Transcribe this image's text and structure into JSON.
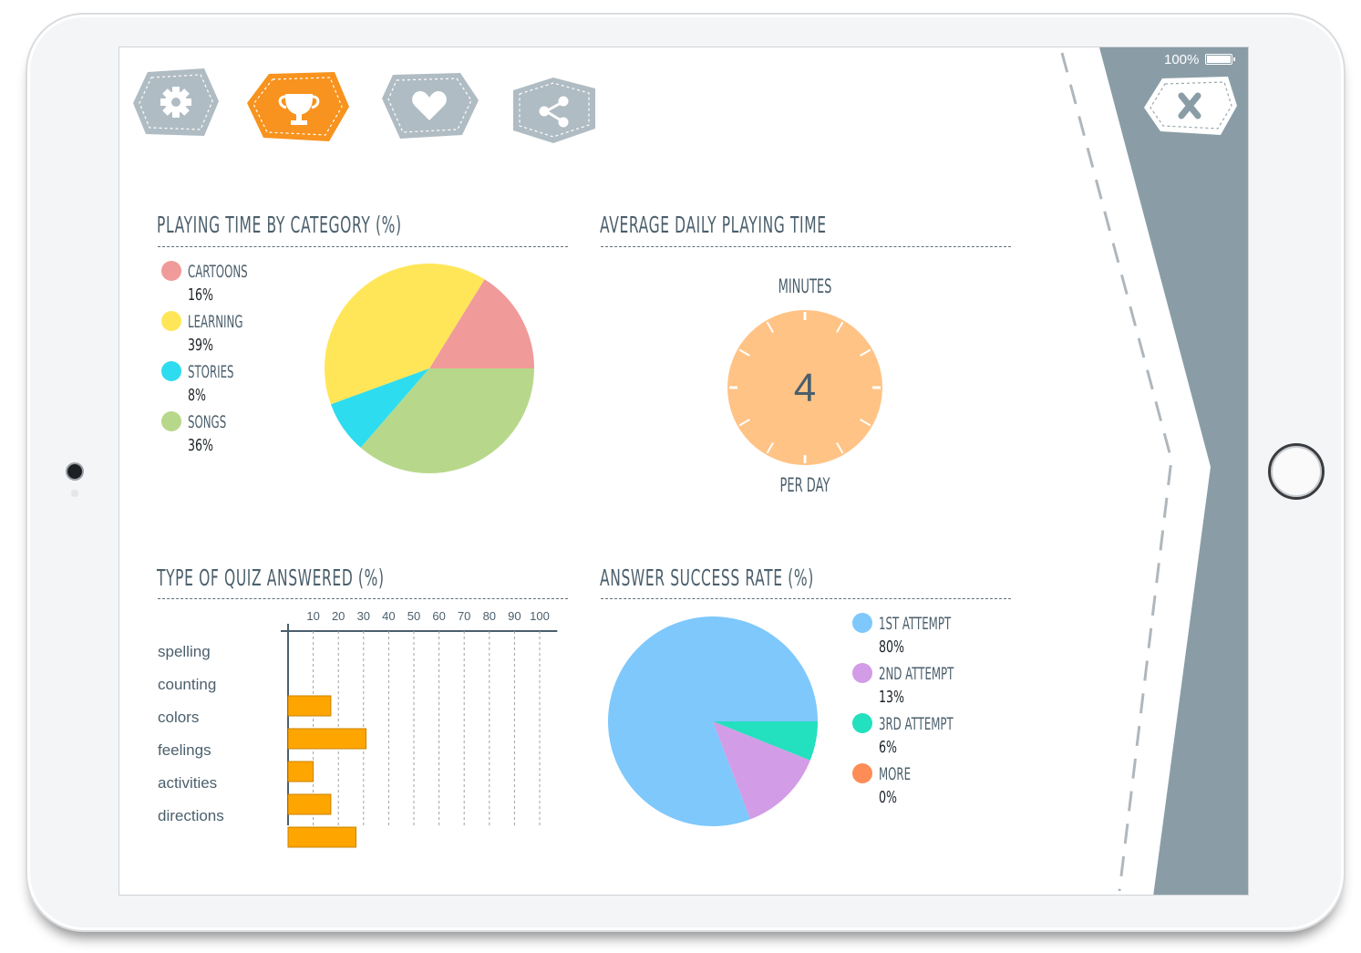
{
  "status": {
    "battery": "100%"
  },
  "toolbar": {
    "badges": [
      {
        "icon": "gear-icon",
        "color": "#b0bcc3",
        "active": false
      },
      {
        "icon": "trophy-icon",
        "color": "#f7931e",
        "active": true
      },
      {
        "icon": "heart-icon",
        "color": "#b0bcc3",
        "active": false
      },
      {
        "icon": "share-icon",
        "color": "#b0bcc3",
        "active": false
      }
    ],
    "close_icon": "close-icon"
  },
  "sections": {
    "category": {
      "title": "PLAYING TIME BY CATEGORY (%)",
      "legend": [
        {
          "label": "CARTOONS",
          "value": "16%",
          "color": "#f09a9a"
        },
        {
          "label": "LEARNING",
          "value": "39%",
          "color": "#ffe658"
        },
        {
          "label": "STORIES",
          "value": "8%",
          "color": "#2ddcef"
        },
        {
          "label": "SONGS",
          "value": "36%",
          "color": "#b7d88a"
        }
      ]
    },
    "daily": {
      "title": "AVERAGE DAILY PLAYING TIME",
      "top_caption": "MINUTES",
      "value": "4",
      "bottom_caption": "PER DAY",
      "color": "#ffc386"
    },
    "quiz": {
      "title": "TYPE OF QUIZ ANSWERED (%)"
    },
    "success": {
      "title": "ANSWER SUCCESS RATE (%)",
      "legend": [
        {
          "label": "1ST ATTEMPT",
          "value": "80%",
          "color": "#7ec8fc"
        },
        {
          "label": "2ND ATTEMPT",
          "value": "13%",
          "color": "#d39ce6"
        },
        {
          "label": "3RD ATTEMPT",
          "value": "6%",
          "color": "#23e0bf"
        },
        {
          "label": "MORE",
          "value": "0%",
          "color": "#fd8c57"
        }
      ]
    }
  },
  "chart_data": [
    {
      "type": "pie",
      "title": "PLAYING TIME BY CATEGORY (%)",
      "categories": [
        "CARTOONS",
        "LEARNING",
        "STORIES",
        "SONGS"
      ],
      "values": [
        16,
        39,
        8,
        36
      ],
      "colors": [
        "#f09a9a",
        "#ffe658",
        "#2ddcef",
        "#b7d88a"
      ],
      "legend": "left"
    },
    {
      "type": "bar",
      "orientation": "horizontal",
      "title": "TYPE OF QUIZ ANSWERED (%)",
      "categories": [
        "spelling",
        "counting",
        "colors",
        "feelings",
        "activities",
        "directions"
      ],
      "values": [
        0,
        17,
        31,
        10,
        17,
        27
      ],
      "xticks": [
        10,
        20,
        30,
        40,
        50,
        60,
        70,
        80,
        90,
        100
      ],
      "xlim": [
        0,
        107
      ],
      "grid": true,
      "color": "#ffa500"
    },
    {
      "type": "pie",
      "title": "ANSWER SUCCESS RATE (%)",
      "categories": [
        "1ST ATTEMPT",
        "2ND ATTEMPT",
        "3RD ATTEMPT",
        "MORE"
      ],
      "values": [
        80,
        13,
        6,
        0
      ],
      "colors": [
        "#7ec8fc",
        "#d39ce6",
        "#23e0bf",
        "#fd8c57"
      ],
      "legend": "right"
    }
  ]
}
